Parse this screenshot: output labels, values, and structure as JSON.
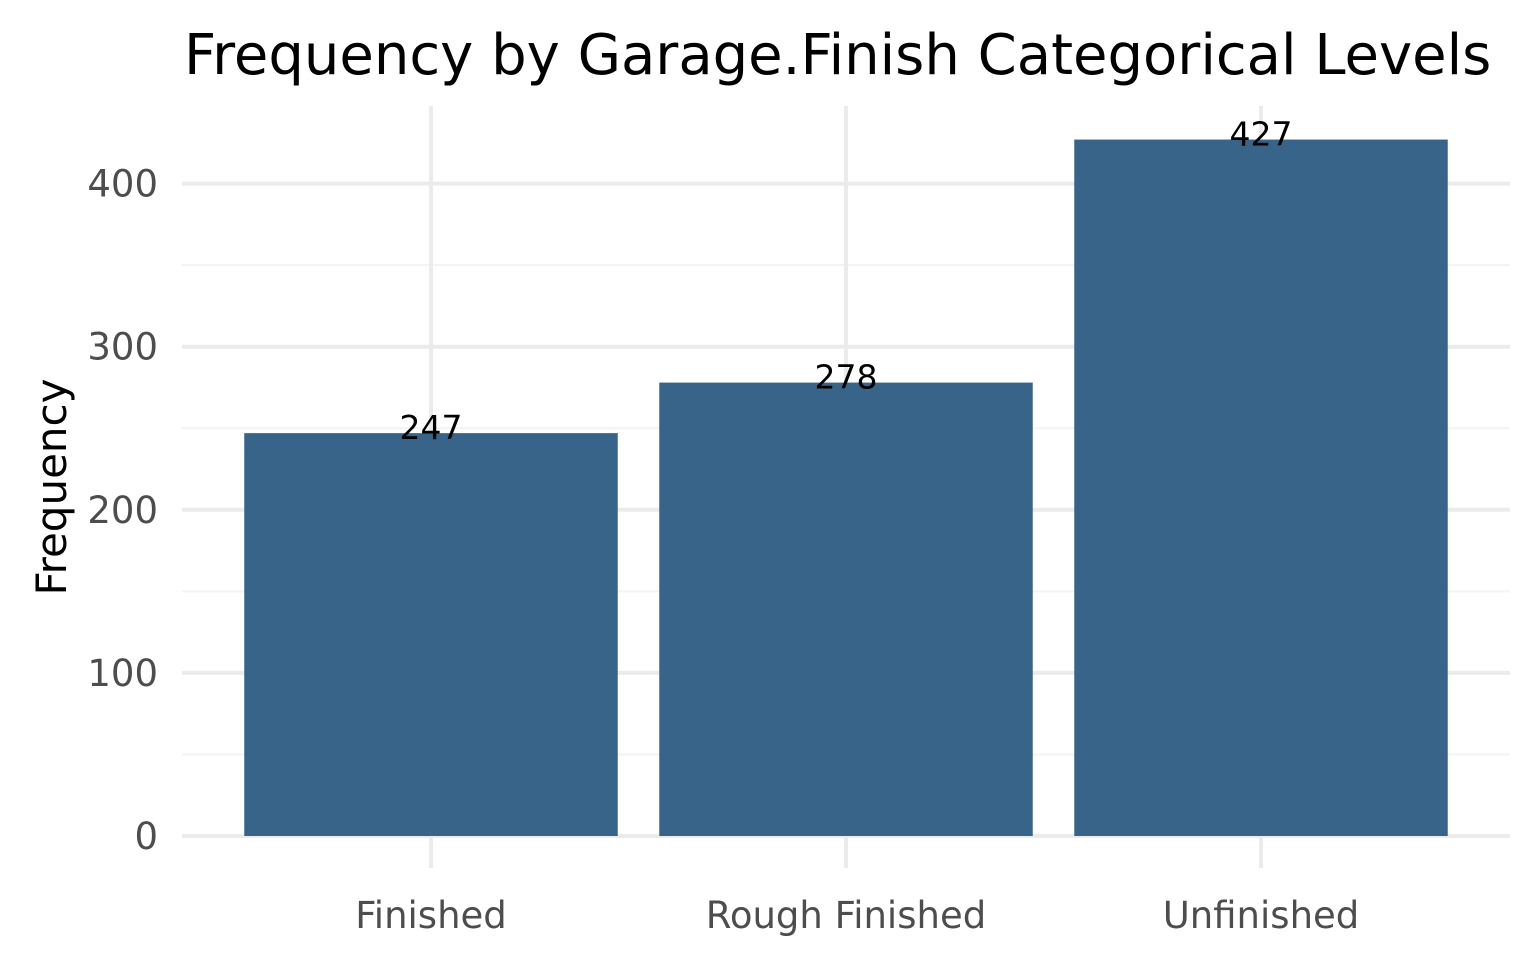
{
  "colors": {
    "bar": "#386489",
    "grid_major": "#ebebeb",
    "grid_minor": "#f3f3f3",
    "background": "#ffffff"
  },
  "chart_data": {
    "type": "bar",
    "title": "Frequency by Garage.Finish Categorical Levels",
    "xlabel": "",
    "ylabel": "Frequency",
    "categories": [
      "Finished",
      "Rough Finished",
      "Unfinished"
    ],
    "values": [
      247,
      278,
      427
    ],
    "data_labels": [
      "247",
      "278",
      "427"
    ],
    "ylim": [
      0,
      448
    ],
    "yticks": [
      0,
      100,
      200,
      300,
      400
    ],
    "ytick_labels": [
      "0",
      "100",
      "200",
      "300",
      "400"
    ],
    "grid": true,
    "legend": "none"
  }
}
